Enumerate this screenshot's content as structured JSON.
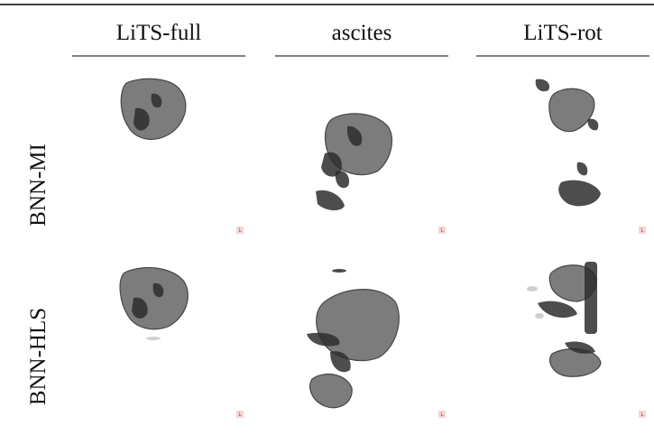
{
  "columns": [
    "LiTS-full",
    "ascites",
    "LiTS-rot"
  ],
  "rows": [
    {
      "label": "BNN-MI",
      "markers": [
        "L",
        "L",
        "L"
      ]
    },
    {
      "label": "BNN-HLS",
      "markers": [
        "L",
        "L",
        "L"
      ]
    }
  ]
}
